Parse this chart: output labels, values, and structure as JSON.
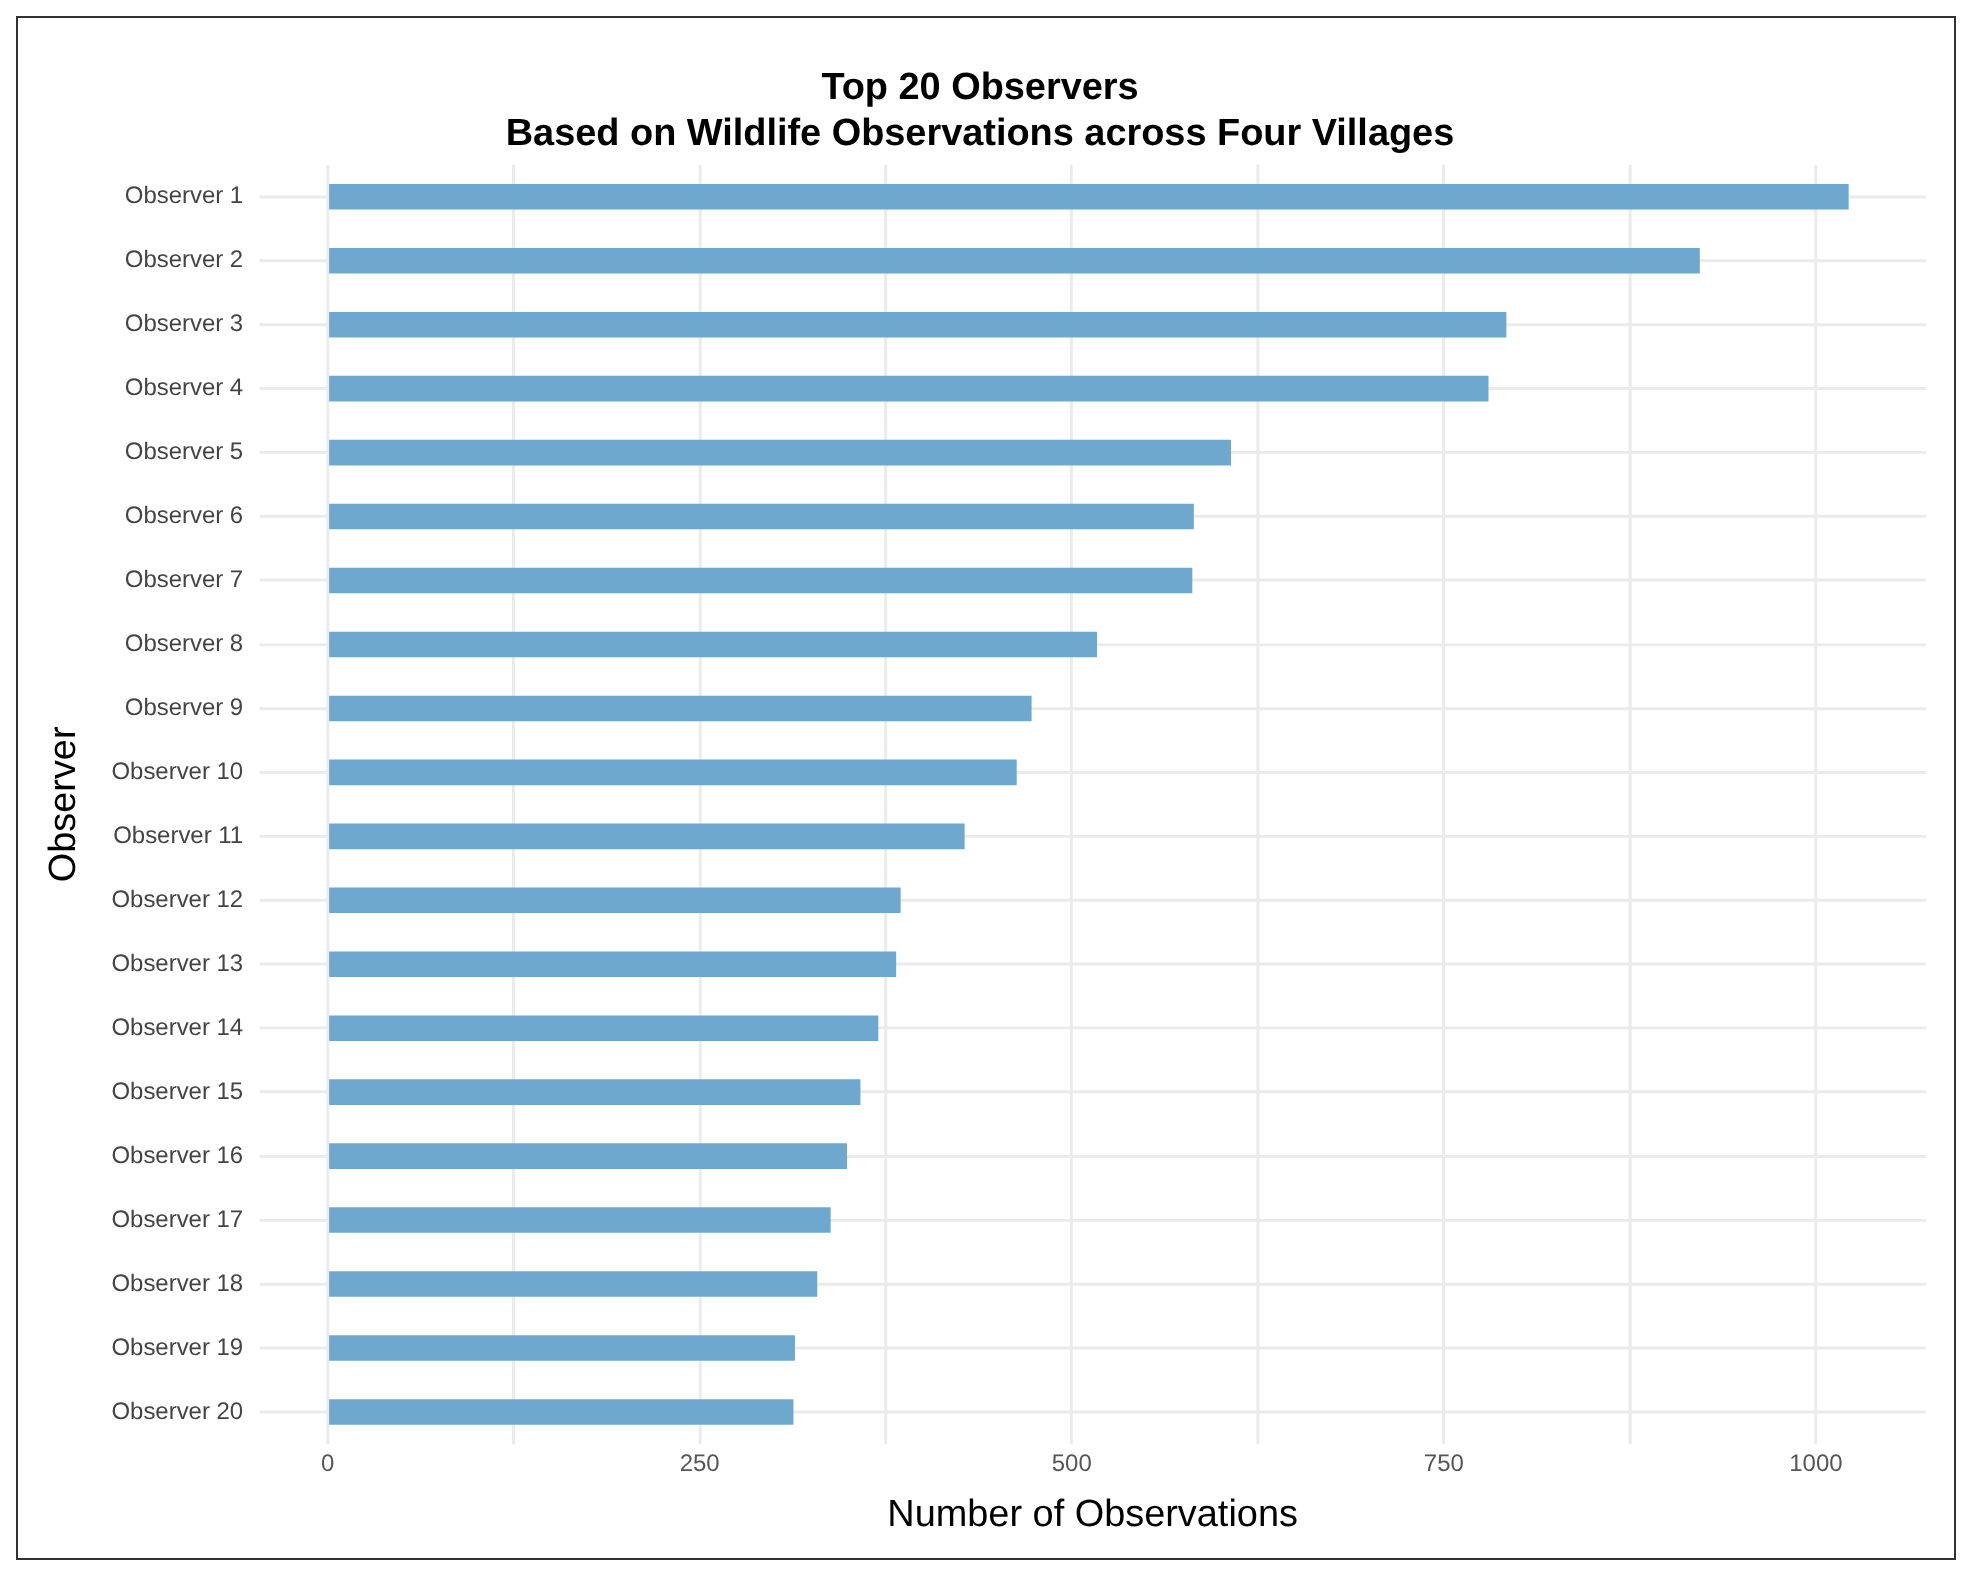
{
  "chart_data": {
    "type": "bar",
    "orientation": "horizontal",
    "title": "Top 20 Observers\nBased on Wildlife Observations across Four Villages",
    "xlabel": "Number of Observations",
    "ylabel": "Observer",
    "categories": [
      "Observer 1",
      "Observer 2",
      "Observer 3",
      "Observer 4",
      "Observer 5",
      "Observer 6",
      "Observer 7",
      "Observer 8",
      "Observer 9",
      "Observer 10",
      "Observer 11",
      "Observer 12",
      "Observer 13",
      "Observer 14",
      "Observer 15",
      "Observer 16",
      "Observer 17",
      "Observer 18",
      "Observer 19",
      "Observer 20"
    ],
    "values": [
      1022,
      922,
      792,
      780,
      607,
      582,
      581,
      517,
      473,
      463,
      428,
      385,
      382,
      370,
      358,
      349,
      338,
      329,
      314,
      313
    ],
    "color": "#6fa8cf",
    "xlim": [
      -46,
      1074
    ],
    "xticks": [
      0,
      {
        "value": 125,
        "label": null
      },
      250,
      {
        "value": 375,
        "label": null
      },
      500,
      {
        "value": 625,
        "label": null
      },
      750,
      {
        "value": 875,
        "label": null
      },
      1000
    ],
    "grid": true,
    "legend": false
  }
}
